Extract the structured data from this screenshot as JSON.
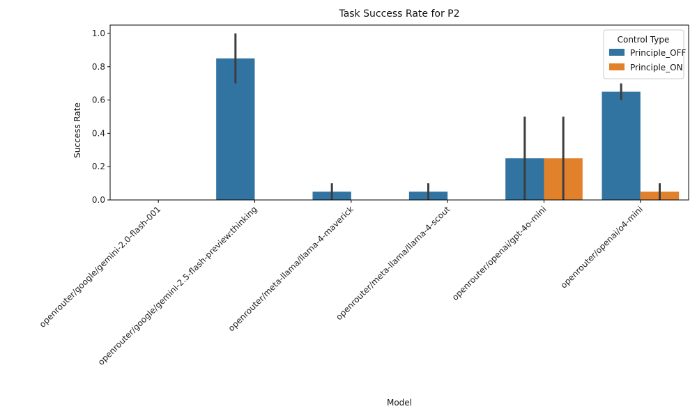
{
  "chart_data": {
    "type": "bar",
    "title": "Task Success Rate for P2",
    "xlabel": "Model",
    "ylabel": "Success Rate",
    "ylim": [
      0,
      1.05
    ],
    "yticks": [
      0.0,
      0.2,
      0.4,
      0.6,
      0.8,
      1.0
    ],
    "ytick_labels": [
      "0.0",
      "0.2",
      "0.4",
      "0.6",
      "0.8",
      "1.0"
    ],
    "grid": false,
    "categories": [
      "openrouter/google/gemini-2.0-flash-001",
      "openrouter/google/gemini-2.5-flash-preview:thinking",
      "openrouter/meta-llama/llama-4-maverick",
      "openrouter/meta-llama/llama-4-scout",
      "openrouter/openai/gpt-4o-mini",
      "openrouter/openai/o4-mini"
    ],
    "legend": {
      "title": "Control Type",
      "placement": "top-right"
    },
    "series": [
      {
        "name": "Principle_OFF",
        "color": "#3274a1",
        "values": [
          0.0,
          0.85,
          0.05,
          0.05,
          0.25,
          0.65
        ],
        "error_low": [
          0.0,
          0.7,
          0.0,
          0.0,
          0.0,
          0.6
        ],
        "error_high": [
          0.0,
          1.0,
          0.1,
          0.1,
          0.5,
          0.7
        ]
      },
      {
        "name": "Principle_ON",
        "color": "#e1812c",
        "values": [
          0.0,
          0.0,
          0.0,
          0.0,
          0.25,
          0.05
        ],
        "error_low": [
          0.0,
          0.0,
          0.0,
          0.0,
          0.0,
          0.0
        ],
        "error_high": [
          0.0,
          0.0,
          0.0,
          0.0,
          0.5,
          0.1
        ]
      }
    ],
    "error_bar_color": "#3d3d3d"
  }
}
